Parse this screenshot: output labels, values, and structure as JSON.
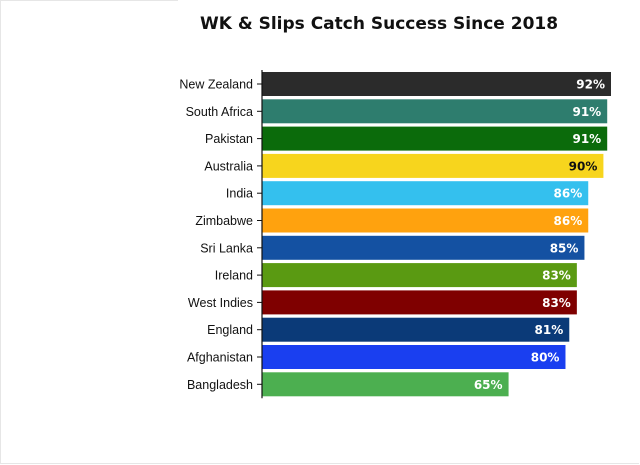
{
  "chart_data": {
    "type": "bar",
    "orientation": "horizontal",
    "title": "WK & Slips Catch Success Since 2018",
    "xlabel": "",
    "ylabel": "",
    "xlim": [
      0,
      92
    ],
    "grid": false,
    "legend": "none",
    "categories": [
      "New Zealand",
      "South Africa",
      "Pakistan",
      "Australia",
      "India",
      "Zimbabwe",
      "Sri Lanka",
      "Ireland",
      "West Indies",
      "England",
      "Afghanistan",
      "Bangladesh"
    ],
    "values": [
      92,
      91,
      91,
      90,
      86,
      86,
      85,
      83,
      83,
      81,
      80,
      65
    ],
    "value_labels": [
      "92%",
      "91%",
      "91%",
      "90%",
      "86%",
      "86%",
      "85%",
      "83%",
      "83%",
      "81%",
      "80%",
      "65%"
    ],
    "colors": [
      "#2b2b2b",
      "#2e7d6e",
      "#0b6b0b",
      "#f7d51d",
      "#34c0ee",
      "#ffa20e",
      "#1451a2",
      "#5a9a12",
      "#7f0000",
      "#0b3a78",
      "#1a3ff0",
      "#4caf50"
    ],
    "label_colors": [
      "#ffffff",
      "#ffffff",
      "#ffffff",
      "#111111",
      "#ffffff",
      "#ffffff",
      "#ffffff",
      "#ffffff",
      "#ffffff",
      "#ffffff",
      "#ffffff",
      "#ffffff"
    ]
  }
}
